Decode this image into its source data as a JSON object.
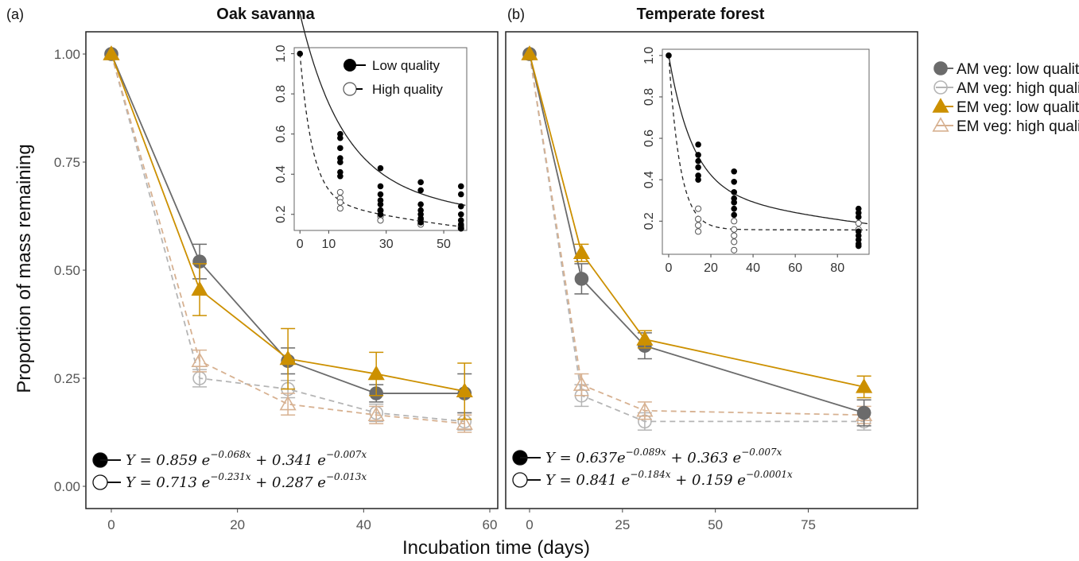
{
  "colors": {
    "am_low": "#6b6b6b",
    "am_high": "#b5b5b5",
    "em_low": "#cc9000",
    "em_high": "#d7b191",
    "inset_low": "#000000",
    "inset_high": "#444444"
  },
  "y_axis_label": "Proportion of mass remaining",
  "x_axis_label": "Incubation time (days)",
  "legend": {
    "items": [
      {
        "label": "AM veg: low quality",
        "marker": "filled-circle",
        "color": "#6b6b6b"
      },
      {
        "label": "AM veg: high quality",
        "marker": "open-circle",
        "color": "#b5b5b5"
      },
      {
        "label": "EM veg: low quality",
        "marker": "filled-triangle",
        "color": "#cc9000"
      },
      {
        "label": "EM veg: high quality",
        "marker": "open-triangle",
        "color": "#d7b191"
      }
    ]
  },
  "chart_data": [
    {
      "panel_label": "(a)",
      "title": "Oak savanna",
      "type": "line",
      "xlim": [
        0,
        60
      ],
      "ylim": [
        0,
        1.05
      ],
      "x_ticks": [
        "0",
        "20",
        "40",
        "60"
      ],
      "y_ticks": [
        "0.00",
        "0.25",
        "0.50",
        "0.75",
        "1.00"
      ],
      "series": [
        {
          "name": "AM veg: low quality",
          "x": [
            0,
            14,
            28,
            42,
            56
          ],
          "y": [
            1.0,
            0.52,
            0.29,
            0.215,
            0.215
          ],
          "err": [
            0,
            0.04,
            0.03,
            0.02,
            0.045
          ]
        },
        {
          "name": "AM veg: high quality",
          "x": [
            0,
            14,
            28,
            42,
            56
          ],
          "y": [
            1.0,
            0.25,
            0.225,
            0.17,
            0.15
          ],
          "err": [
            0,
            0.02,
            0.02,
            0.02,
            0.02
          ]
        },
        {
          "name": "EM veg: low quality",
          "x": [
            0,
            14,
            28,
            42,
            56
          ],
          "y": [
            1.0,
            0.455,
            0.295,
            0.26,
            0.22
          ],
          "err": [
            0,
            0.06,
            0.07,
            0.05,
            0.065
          ]
        },
        {
          "name": "EM veg: high quality",
          "x": [
            0,
            14,
            28,
            42,
            56
          ],
          "y": [
            1.0,
            0.29,
            0.19,
            0.165,
            0.145
          ],
          "err": [
            0,
            0.025,
            0.025,
            0.02,
            0.02
          ]
        }
      ],
      "equations": [
        {
          "marker": "filled",
          "prefix": "Y =  0.859 e",
          "exp1": "−0.068x",
          "middle": " + 0.341 e",
          "exp2": "−0.007x"
        },
        {
          "marker": "open",
          "prefix": "Y =  0.713 e",
          "exp1": "−0.231x",
          "middle": " + 0.287 e",
          "exp2": "−0.013x"
        }
      ],
      "inset": {
        "type": "scatter",
        "xlim": [
          -2,
          58
        ],
        "ylim": [
          0.12,
          1.03
        ],
        "x_ticks": [
          "0",
          "10",
          "30",
          "50"
        ],
        "y_ticks": [
          "0.2",
          "0.4",
          "0.6",
          "0.8",
          "1.0"
        ],
        "legend": [
          "Low quality",
          "High quality"
        ],
        "low_points": [
          [
            0,
            1.0
          ],
          [
            14,
            0.6
          ],
          [
            14,
            0.58
          ],
          [
            14,
            0.53
          ],
          [
            14,
            0.48
          ],
          [
            14,
            0.46
          ],
          [
            14,
            0.41
          ],
          [
            14,
            0.39
          ],
          [
            28,
            0.43
          ],
          [
            28,
            0.34
          ],
          [
            28,
            0.3
          ],
          [
            28,
            0.27
          ],
          [
            28,
            0.25
          ],
          [
            28,
            0.22
          ],
          [
            28,
            0.2
          ],
          [
            42,
            0.36
          ],
          [
            42,
            0.32
          ],
          [
            42,
            0.25
          ],
          [
            42,
            0.22
          ],
          [
            42,
            0.2
          ],
          [
            42,
            0.18
          ],
          [
            42,
            0.16
          ],
          [
            56,
            0.34
          ],
          [
            56,
            0.3
          ],
          [
            56,
            0.24
          ],
          [
            56,
            0.2
          ],
          [
            56,
            0.17
          ],
          [
            56,
            0.15
          ],
          [
            56,
            0.13
          ]
        ],
        "high_points": [
          [
            14,
            0.31
          ],
          [
            14,
            0.28
          ],
          [
            14,
            0.26
          ],
          [
            14,
            0.23
          ],
          [
            28,
            0.22
          ],
          [
            28,
            0.19
          ],
          [
            28,
            0.17
          ],
          [
            42,
            0.17
          ],
          [
            42,
            0.15
          ],
          [
            56,
            0.14
          ],
          [
            56,
            0.13
          ]
        ],
        "low_fit": {
          "a": 0.859,
          "k1": 0.068,
          "b": 0.341,
          "k2": 0.007
        },
        "high_fit": {
          "a": 0.713,
          "k1": 0.231,
          "b": 0.287,
          "k2": 0.013
        }
      }
    },
    {
      "panel_label": "(b)",
      "title": "Temperate forest",
      "type": "line",
      "xlim": [
        0,
        95
      ],
      "ylim": [
        0,
        1.05
      ],
      "x_ticks": [
        "0",
        "25",
        "50",
        "75"
      ],
      "y_ticks": [],
      "series": [
        {
          "name": "AM veg: low quality",
          "x": [
            0,
            14,
            31,
            90
          ],
          "y": [
            1.0,
            0.48,
            0.325,
            0.17
          ],
          "err": [
            0,
            0.035,
            0.03,
            0.03
          ]
        },
        {
          "name": "AM veg: high quality",
          "x": [
            0,
            14,
            31,
            90
          ],
          "y": [
            1.0,
            0.21,
            0.15,
            0.15
          ],
          "err": [
            0,
            0.025,
            0.02,
            0.02
          ]
        },
        {
          "name": "EM veg: low quality",
          "x": [
            0,
            14,
            31,
            90
          ],
          "y": [
            1.0,
            0.54,
            0.34,
            0.23
          ],
          "err": [
            0,
            0.02,
            0.02,
            0.025
          ]
        },
        {
          "name": "EM veg: high quality",
          "x": [
            0,
            14,
            31,
            90
          ],
          "y": [
            1.0,
            0.235,
            0.175,
            0.165
          ],
          "err": [
            0,
            0.025,
            0.02,
            0.02
          ]
        }
      ],
      "equations": [
        {
          "marker": "filled",
          "prefix": "Y =  0.637e",
          "exp1": "−0.089x",
          "middle": " + 0.363 e",
          "exp2": "−0.007x"
        },
        {
          "marker": "open",
          "prefix": "Y =  0.841 e",
          "exp1": "−0.184x",
          "middle": " + 0.159 e",
          "exp2": "−0.0001x"
        }
      ],
      "inset": {
        "type": "scatter",
        "xlim": [
          -3,
          95
        ],
        "ylim": [
          0.04,
          1.03
        ],
        "x_ticks": [
          "0",
          "20",
          "40",
          "60",
          "80"
        ],
        "y_ticks": [
          "0.2",
          "0.4",
          "0.6",
          "0.8",
          "1.0"
        ],
        "legend": [],
        "low_points": [
          [
            0,
            1.0
          ],
          [
            14,
            0.57
          ],
          [
            14,
            0.52
          ],
          [
            14,
            0.49
          ],
          [
            14,
            0.46
          ],
          [
            14,
            0.42
          ],
          [
            14,
            0.4
          ],
          [
            31,
            0.44
          ],
          [
            31,
            0.39
          ],
          [
            31,
            0.34
          ],
          [
            31,
            0.31
          ],
          [
            31,
            0.29
          ],
          [
            31,
            0.26
          ],
          [
            31,
            0.23
          ],
          [
            90,
            0.26
          ],
          [
            90,
            0.24
          ],
          [
            90,
            0.22
          ],
          [
            90,
            0.15
          ],
          [
            90,
            0.13
          ],
          [
            90,
            0.11
          ],
          [
            90,
            0.09
          ],
          [
            90,
            0.08
          ]
        ],
        "high_points": [
          [
            14,
            0.26
          ],
          [
            14,
            0.21
          ],
          [
            14,
            0.18
          ],
          [
            14,
            0.15
          ],
          [
            31,
            0.2
          ],
          [
            31,
            0.16
          ],
          [
            31,
            0.13
          ],
          [
            31,
            0.1
          ],
          [
            31,
            0.06
          ],
          [
            90,
            0.19
          ],
          [
            90,
            0.16
          ]
        ],
        "low_fit": {
          "a": 0.637,
          "k1": 0.089,
          "b": 0.363,
          "k2": 0.007
        },
        "high_fit": {
          "a": 0.841,
          "k1": 0.184,
          "b": 0.159,
          "k2": 0.0001
        }
      }
    }
  ]
}
